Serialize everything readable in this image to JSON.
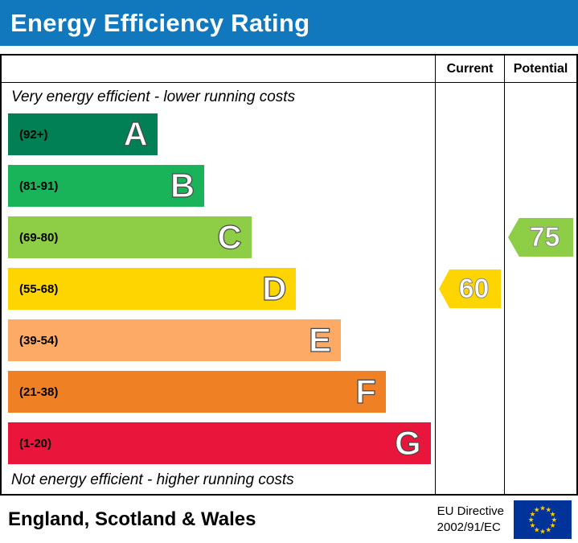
{
  "title": "Energy Efficiency Rating",
  "header": {
    "current": "Current",
    "potential": "Potential"
  },
  "notes": {
    "top": "Very energy efficient - lower running costs",
    "bottom": "Not energy efficient - higher running costs"
  },
  "footer": {
    "region": "England, Scotland & Wales",
    "directive": [
      "EU Directive",
      "2002/91/EC"
    ]
  },
  "colors": {
    "title_bar": "#1278be",
    "eu_flag_bg": "#003399",
    "eu_flag_stars": "#ffcc00"
  },
  "chart_data": {
    "type": "bar",
    "title": "Energy Efficiency Rating",
    "bands": [
      {
        "letter": "A",
        "range": "(92+)",
        "color": "#008054",
        "width_pct": 35
      },
      {
        "letter": "B",
        "range": "(81-91)",
        "color": "#19b459",
        "width_pct": 46
      },
      {
        "letter": "C",
        "range": "(69-80)",
        "color": "#8dce46",
        "width_pct": 57
      },
      {
        "letter": "D",
        "range": "(55-68)",
        "color": "#ffd500",
        "width_pct": 67.5
      },
      {
        "letter": "E",
        "range": "(39-54)",
        "color": "#fcaa65",
        "width_pct": 78
      },
      {
        "letter": "F",
        "range": "(21-38)",
        "color": "#ef8023",
        "width_pct": 88.5
      },
      {
        "letter": "G",
        "range": "(1-20)",
        "color": "#e9153b",
        "width_pct": 99
      }
    ],
    "current": {
      "value": 60,
      "band": "D",
      "color": "#ffd500"
    },
    "potential": {
      "value": 75,
      "band": "C",
      "color": "#8dce46"
    }
  }
}
